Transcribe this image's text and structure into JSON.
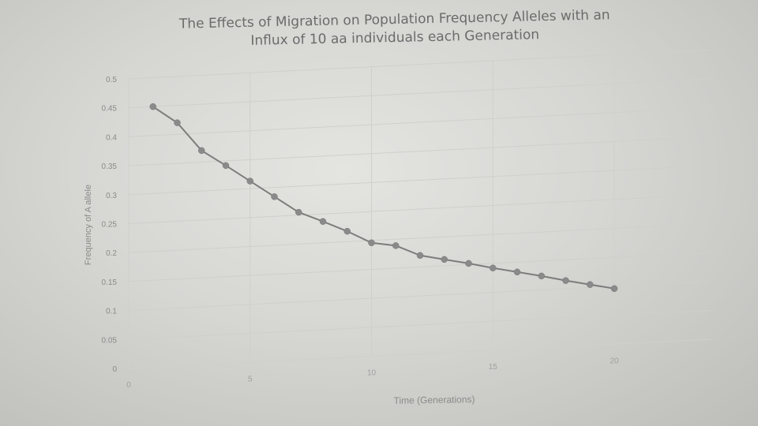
{
  "chart_data": {
    "type": "line",
    "title": [
      "The Effects of Migration on Population Frequency Alleles with an",
      "Influx of 10 aa individuals each Generation"
    ],
    "xlabel": "Time (Generations)",
    "ylabel": "Frequency of A allele",
    "xlim": [
      0,
      20
    ],
    "ylim": [
      0,
      0.5
    ],
    "x_ticks": [
      "0",
      "5",
      "10",
      "15",
      "20"
    ],
    "y_ticks": [
      "0",
      "0.05",
      "0.1",
      "0.15",
      "0.2",
      "0.25",
      "0.3",
      "0.35",
      "0.4",
      "0.45",
      "0.5"
    ],
    "grid": true,
    "series": [
      {
        "x": [
          1,
          2,
          3,
          4,
          5,
          6,
          7,
          8,
          9,
          10,
          11,
          12,
          13,
          14,
          15,
          16,
          17,
          18,
          19,
          20
        ],
        "y": [
          0.45,
          0.42,
          0.37,
          0.342,
          0.313,
          0.284,
          0.255,
          0.237,
          0.218,
          0.196,
          0.189,
          0.17,
          0.161,
          0.152,
          0.142,
          0.133,
          0.124,
          0.114,
          0.105,
          0.096
        ]
      }
    ],
    "colors": {
      "line": "#7d7d7d",
      "marker": "#8a8a8a",
      "grid": "#cfcfcc",
      "text": "#8a8a8a"
    }
  }
}
